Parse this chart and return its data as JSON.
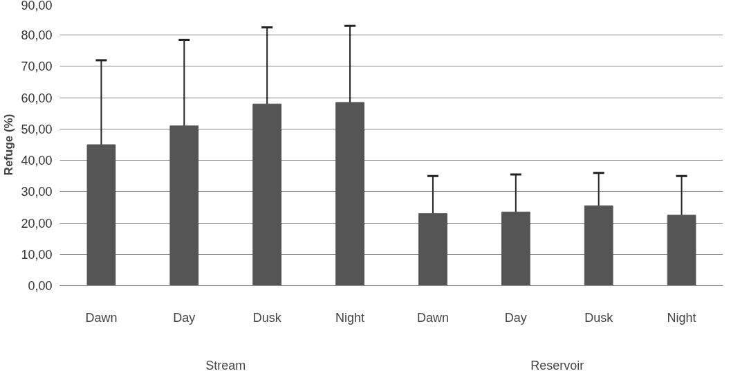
{
  "chart_data": {
    "type": "bar",
    "ylabel": "Refuge (%)",
    "categories": [
      "Dawn",
      "Day",
      "Dusk",
      "Night",
      "Dawn",
      "Day",
      "Dusk",
      "Night"
    ],
    "values": [
      45,
      51,
      58,
      58.5,
      23,
      23.5,
      25.5,
      22.5
    ],
    "errors": [
      [
        45,
        72
      ],
      [
        51,
        78.5
      ],
      [
        58,
        82.5
      ],
      [
        58.5,
        83
      ],
      [
        23,
        35
      ],
      [
        23.5,
        35.5
      ],
      [
        25.5,
        36
      ],
      [
        22.5,
        35
      ]
    ],
    "color": "#555555",
    "ylim": [
      0,
      90
    ],
    "yticks": [
      {
        "value": 0,
        "label": "0,00"
      },
      {
        "value": 10,
        "label": "10,00"
      },
      {
        "value": 20,
        "label": "20,00"
      },
      {
        "value": 30,
        "label": "30,00"
      },
      {
        "value": 40,
        "label": "40,00"
      },
      {
        "value": 50,
        "label": "50,00"
      },
      {
        "value": 60,
        "label": "60,00"
      },
      {
        "value": 70,
        "label": "70,00"
      },
      {
        "value": 80,
        "label": "80,00"
      },
      {
        "value": 90,
        "label": "90,00"
      }
    ],
    "grid": "y",
    "annotations": [
      "Stream",
      "Reservoir"
    ]
  }
}
